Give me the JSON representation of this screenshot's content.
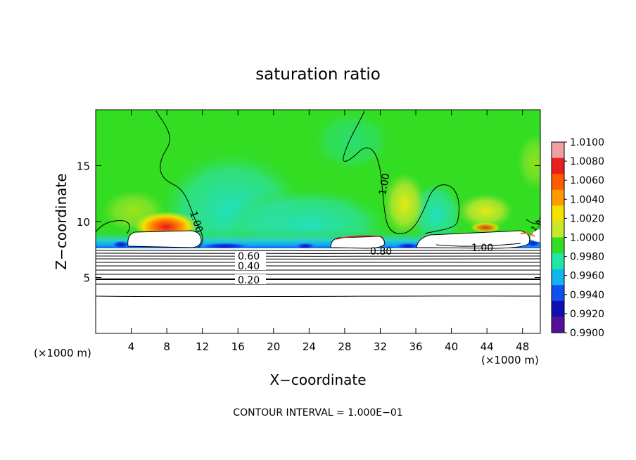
{
  "chart_data": {
    "type": "heatmap",
    "title": "saturation ratio",
    "xlabel": "X−coordinate",
    "ylabel": "Z−coordinate",
    "x_unit_label": "(×1000 m)",
    "z_unit_label": "(×1000 m)",
    "xlim": [
      0,
      50
    ],
    "ylim": [
      0,
      20
    ],
    "x_ticks": [
      "4",
      "8",
      "12",
      "16",
      "20",
      "24",
      "28",
      "32",
      "36",
      "40",
      "44",
      "48"
    ],
    "y_ticks": [
      "5",
      "10",
      "15"
    ],
    "grid": false,
    "colorbar": {
      "placement": "right",
      "labels": [
        "1.0100",
        "1.0080",
        "1.0060",
        "1.0040",
        "1.0020",
        "1.0000",
        "0.9980",
        "0.9960",
        "0.9940",
        "0.9920",
        "0.9900"
      ],
      "colors": [
        "#f0a0a0",
        "#e82020",
        "#ff5a00",
        "#ff9a00",
        "#f2e200",
        "#c8e830",
        "#33dd22",
        "#22e6a6",
        "#11b6ee",
        "#1050ee",
        "#1010b0",
        "#55109a"
      ]
    },
    "contour_labels": [
      "0.20",
      "0.40",
      "0.60",
      "0.80",
      "1.00",
      "1.00",
      "1.00",
      "1.00"
    ],
    "footer": "CONTOUR INTERVAL = 1.000E−01"
  }
}
